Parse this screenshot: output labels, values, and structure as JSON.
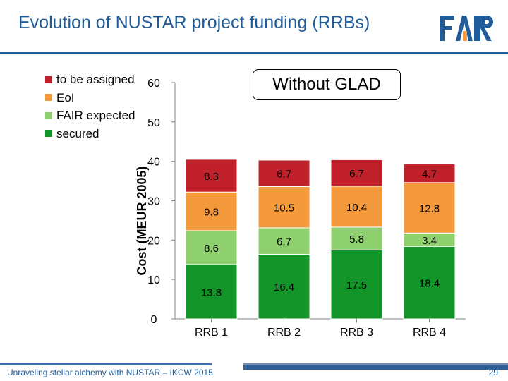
{
  "slide": {
    "title": "Evolution of NUSTAR project funding (RRBs)",
    "logo_text": "FAIR",
    "callout": "Without GLAD",
    "footer": "Unraveling stellar alchemy with NUSTAR – IKCW 2015",
    "page_number": "29"
  },
  "colors": {
    "title": "#1f5c99",
    "to_be_assigned": "#c0202a",
    "eoi": "#f59a3c",
    "fair_expected": "#8ecf6e",
    "secured": "#13952a"
  },
  "legend": [
    {
      "label": "to be assigned",
      "color": "#c0202a"
    },
    {
      "label": "EoI",
      "color": "#f59a3c"
    },
    {
      "label": "FAIR expected",
      "color": "#8ecf6e"
    },
    {
      "label": "secured",
      "color": "#13952a"
    }
  ],
  "chart_data": {
    "type": "bar",
    "stacked": true,
    "categories": [
      "RRB 1",
      "RRB 2",
      "RRB 3",
      "RRB 4"
    ],
    "series": [
      {
        "name": "secured",
        "values": [
          13.8,
          16.4,
          17.5,
          18.4
        ],
        "labels": [
          "13.8",
          "16.4",
          "17.5",
          "18.4"
        ],
        "color": "#13952a"
      },
      {
        "name": "FAIR expected",
        "values": [
          8.6,
          6.7,
          5.8,
          3.4
        ],
        "labels": [
          "8.6",
          "6.7",
          "5.8",
          "3.4"
        ],
        "color": "#8ecf6e"
      },
      {
        "name": "EoI",
        "values": [
          9.8,
          10.5,
          10.4,
          12.8
        ],
        "labels": [
          "9.8",
          "10.5",
          "10.4",
          "12.8"
        ],
        "color": "#f59a3c"
      },
      {
        "name": "to be assigned",
        "values": [
          8.3,
          6.7,
          6.7,
          4.7
        ],
        "labels": [
          "8.3",
          "6.7",
          "6.7",
          "4.7"
        ],
        "color": "#c0202a"
      }
    ],
    "ylabel": "Cost (MEUR 2005)",
    "ylim": [
      0,
      60
    ],
    "yticks": [
      "0",
      "10",
      "20",
      "30",
      "40",
      "50",
      "60"
    ],
    "grid": false,
    "legend_position": "top-left"
  }
}
